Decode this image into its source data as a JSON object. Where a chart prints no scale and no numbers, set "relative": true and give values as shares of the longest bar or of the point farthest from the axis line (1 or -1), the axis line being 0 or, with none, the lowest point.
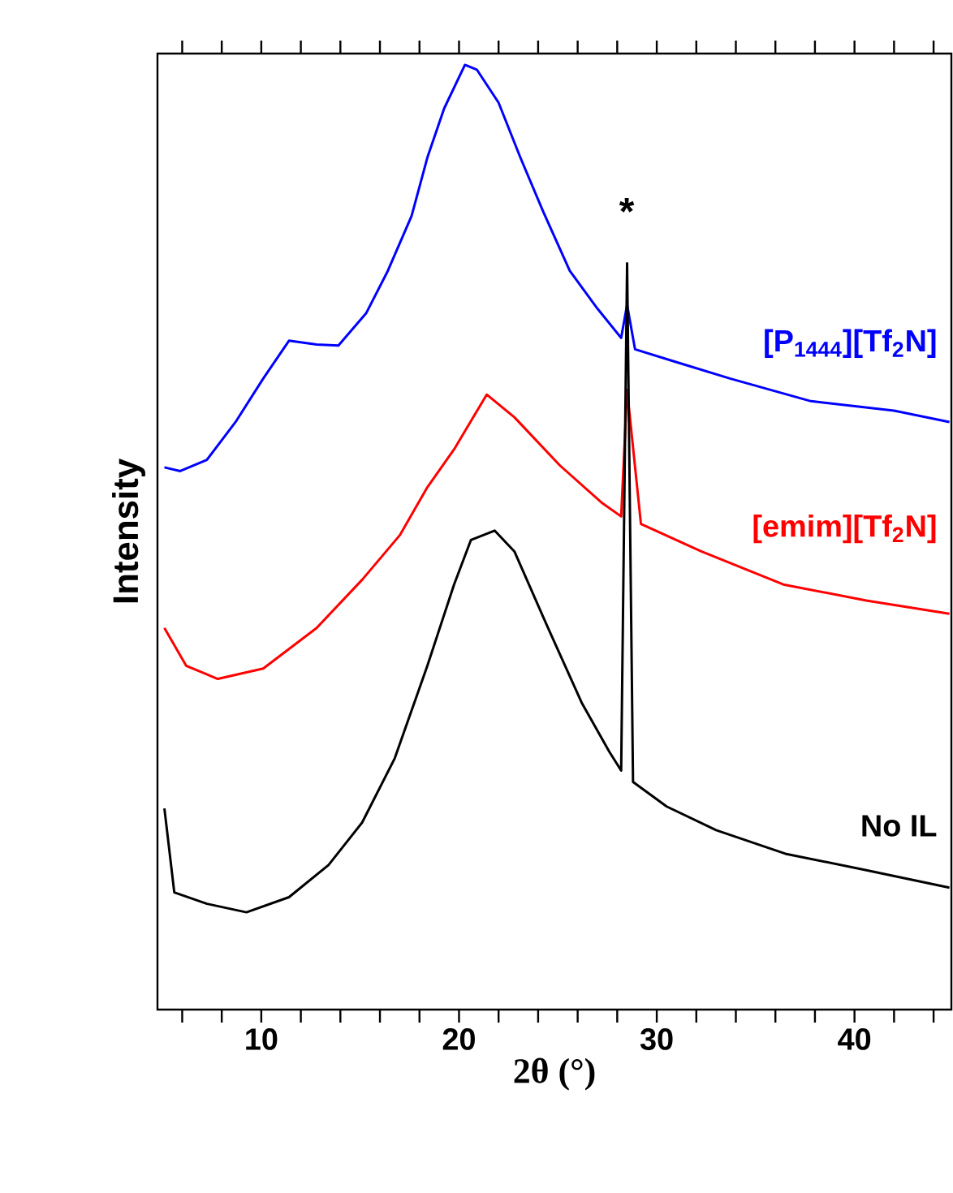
{
  "chart_data": {
    "type": "line",
    "xlabel": "2θ (°)",
    "ylabel": "Intensity",
    "relative": true,
    "xlim": [
      4.75,
      44.9
    ],
    "xticks": [
      {
        "value": 6,
        "label": null
      },
      {
        "value": 8,
        "label": null
      },
      10,
      {
        "value": 12,
        "label": null
      },
      {
        "value": 14,
        "label": null
      },
      {
        "value": 16,
        "label": null
      },
      {
        "value": 18,
        "label": null
      },
      20,
      {
        "value": 22,
        "label": null
      },
      {
        "value": 24,
        "label": null
      },
      {
        "value": 26,
        "label": null
      },
      {
        "value": 28,
        "label": null
      },
      30,
      {
        "value": 32,
        "label": null
      },
      {
        "value": 34,
        "label": null
      },
      {
        "value": 36,
        "label": null
      },
      {
        "value": 38,
        "label": null
      },
      40,
      {
        "value": 42,
        "label": null
      },
      {
        "value": 44,
        "label": null
      }
    ],
    "series": [
      {
        "name": "[P$_{1444}$][Tf$_{2}$N]",
        "color": "#0000ff",
        "x": [
          5.1,
          5.9,
          7.25,
          8.7,
          10.1,
          11.4,
          12.8,
          13.9,
          15.3,
          16.4,
          17.6,
          18.4,
          19.25,
          20.3,
          20.9,
          22,
          23.1,
          24.25,
          25.6,
          27,
          28.2,
          28.5,
          28.9,
          30.9,
          33.7,
          37.8,
          42,
          44.8
        ],
        "values": [
          0.574,
          0.57,
          0.582,
          0.622,
          0.668,
          0.708,
          0.704,
          0.703,
          0.737,
          0.782,
          0.84,
          0.902,
          0.954,
          1.0,
          0.995,
          0.96,
          0.902,
          0.845,
          0.782,
          0.742,
          0.711,
          0.746,
          0.699,
          0.686,
          0.668,
          0.644,
          0.634,
          0.622
        ]
      },
      {
        "name": "[emim][Tf$_{2}$N]",
        "color": "#ff0000",
        "x": [
          5.1,
          6.2,
          7.8,
          10.1,
          12.8,
          15.1,
          17,
          18.4,
          19.75,
          21.4,
          22.8,
          25.1,
          27.25,
          28.2,
          28.5,
          29.2,
          32.25,
          36.4,
          40.6,
          44.8
        ],
        "values": [
          0.404,
          0.364,
          0.35,
          0.361,
          0.404,
          0.455,
          0.502,
          0.553,
          0.593,
          0.651,
          0.627,
          0.576,
          0.536,
          0.522,
          0.656,
          0.514,
          0.485,
          0.45,
          0.433,
          0.419
        ]
      },
      {
        "name": "No IL",
        "color": "#000000",
        "x": [
          5.1,
          5.6,
          7.25,
          9.25,
          11.4,
          13.4,
          15.1,
          16.75,
          18.4,
          19.75,
          20.6,
          21.8,
          22.8,
          24.5,
          26.2,
          27.6,
          28.2,
          28.5,
          28.8,
          30.5,
          33,
          36.5,
          40.5,
          44.8
        ],
        "values": [
          0.213,
          0.124,
          0.112,
          0.103,
          0.119,
          0.153,
          0.198,
          0.266,
          0.364,
          0.45,
          0.497,
          0.507,
          0.485,
          0.404,
          0.325,
          0.273,
          0.253,
          0.79,
          0.241,
          0.215,
          0.19,
          0.165,
          0.148,
          0.129
        ]
      }
    ],
    "annotations": [
      "*"
    ]
  }
}
